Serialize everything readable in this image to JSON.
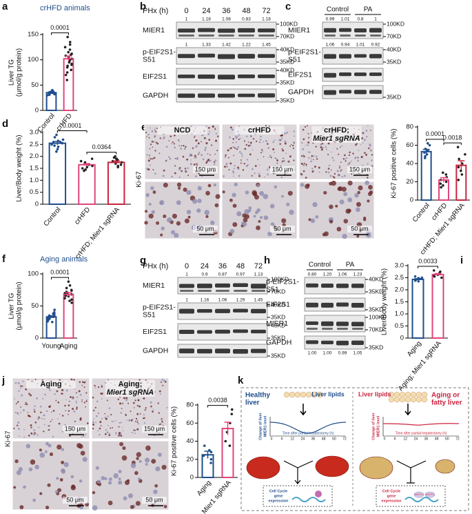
{
  "chart_data": [
    {
      "panel": "a",
      "type": "bar",
      "title": "crHFD animals",
      "ylabel": [
        "Liver TG",
        "(μmol/g protein)"
      ],
      "categories": [
        "Control",
        "crHFD"
      ],
      "values": [
        35,
        102
      ],
      "errors": [
        1.5,
        5.5
      ],
      "colors": [
        "#1f4e8c",
        "#e0457b"
      ],
      "points": [
        [
          30,
          32,
          33,
          34,
          35,
          35,
          36,
          36,
          37,
          38,
          38,
          40,
          34,
          31
        ],
        [
          145,
          135,
          130,
          125,
          120,
          115,
          112,
          110,
          108,
          105,
          102,
          100,
          98,
          95,
          92,
          90,
          88,
          85,
          80,
          75,
          70,
          60
        ]
      ],
      "ylim": [
        0,
        150
      ],
      "yticks": [
        0,
        50,
        100,
        150
      ],
      "comparisons": [
        {
          "label": "0.0001",
          "groups": [
            "Control",
            "crHFD"
          ]
        }
      ]
    },
    {
      "panel": "d",
      "type": "bar",
      "ylabel": [
        "Liver/Body weight (%)"
      ],
      "categories": [
        "Control",
        "crHFD",
        "crHFD; Mier1 sgRNA"
      ],
      "values": [
        2.55,
        1.65,
        1.75
      ],
      "errors": [
        0.07,
        0.05,
        0.06
      ],
      "colors": [
        "#1f4e8c",
        "#e0457b",
        "#c9243f"
      ],
      "points": [
        [
          2.9,
          2.8,
          2.7,
          2.65,
          2.6,
          2.55,
          2.5,
          2.45,
          2.4,
          2.3,
          2.2,
          2.6
        ],
        [
          1.9,
          1.8,
          1.75,
          1.7,
          1.65,
          1.6,
          1.55,
          1.5,
          1.45,
          1.4,
          1.7
        ],
        [
          2.0,
          1.95,
          1.9,
          1.85,
          1.8,
          1.75,
          1.7,
          1.65,
          1.6,
          1.55,
          1.8,
          1.9
        ]
      ],
      "ylim": [
        0,
        3
      ],
      "yticks": [
        0,
        0.5,
        {
          "value": 1,
          "label": "1.0"
        },
        1.5,
        {
          "value": 2,
          "label": "2.0"
        },
        2.5,
        {
          "value": 3,
          "label": "3.0"
        }
      ],
      "comparisons": [
        {
          "label": "0.0001",
          "groups": [
            "Control",
            "crHFD"
          ]
        },
        {
          "label": "0.0364",
          "groups": [
            "crHFD",
            "crHFD; Mier1 sgRNA"
          ]
        }
      ]
    },
    {
      "panel": "e",
      "type": "bar",
      "ylabel": [
        "Ki-67 positive cells (%)"
      ],
      "categories": [
        "Control",
        "crHFD",
        "crHFD; Mier1 sgRNA"
      ],
      "values": [
        53,
        22,
        38
      ],
      "errors": [
        2.5,
        2.5,
        5
      ],
      "colors": [
        "#1f4e8c",
        "#e0457b",
        "#c9243f"
      ],
      "points": [
        [
          62,
          60,
          56,
          54,
          52,
          50,
          48,
          46
        ],
        [
          30,
          28,
          25,
          22,
          20,
          18,
          16,
          14
        ],
        [
          58,
          50,
          45,
          40,
          36,
          32,
          28,
          22
        ]
      ],
      "ylim": [
        0,
        80
      ],
      "yticks": [
        0,
        20,
        40,
        60,
        80
      ],
      "comparisons": [
        {
          "label": "0.0001",
          "groups": [
            "Control",
            "crHFD"
          ]
        },
        {
          "label": "0.0018",
          "groups": [
            "crHFD",
            "crHFD; Mier1 sgRNA"
          ]
        }
      ]
    },
    {
      "panel": "f",
      "type": "bar",
      "title": "Aging animals",
      "ylabel": [
        "Liver TG",
        "(μmol/g protein)"
      ],
      "categories": [
        "Young",
        "Aging"
      ],
      "values": [
        33,
        68
      ],
      "errors": [
        1.8,
        3
      ],
      "colors": [
        "#1f4e8c",
        "#e0457b"
      ],
      "points": [
        [
          44,
          40,
          38,
          36,
          34,
          33,
          32,
          31,
          30,
          28,
          26,
          25,
          35,
          38
        ],
        [
          88,
          82,
          78,
          75,
          72,
          70,
          68,
          66,
          65,
          62,
          60,
          58,
          55,
          70,
          74
        ]
      ],
      "ylim": [
        0,
        100
      ],
      "yticks": [
        0,
        50,
        100
      ],
      "comparisons": [
        {
          "label": "0.0001",
          "groups": [
            "Young",
            "Aging"
          ]
        }
      ]
    },
    {
      "panel": "i",
      "type": "bar",
      "ylabel": [
        "Liver/Body weight (%)"
      ],
      "categories": [
        "Aging",
        "Aging; Mier1 sgRNA"
      ],
      "values": [
        2.43,
        2.63
      ],
      "errors": [
        0.03,
        0.04
      ],
      "colors": [
        "#1f4e8c",
        "#e0457b"
      ],
      "points": [
        [
          2.55,
          2.5,
          2.48,
          2.45,
          2.42,
          2.4,
          2.38,
          2.35
        ],
        [
          2.8,
          2.75,
          2.7,
          2.65,
          2.62,
          2.6,
          2.55,
          2.5
        ]
      ],
      "ylim": [
        0,
        3
      ],
      "yticks": [
        0,
        0.5,
        {
          "value": 1,
          "label": "1.0"
        },
        1.5,
        {
          "value": 2,
          "label": "2.0"
        },
        2.5,
        {
          "value": 3,
          "label": "3.0"
        }
      ],
      "comparisons": [
        {
          "label": "0.0033",
          "groups": [
            "Aging",
            "Aging; Mier1 sgRNA"
          ]
        }
      ]
    },
    {
      "panel": "j",
      "type": "bar",
      "ylabel": [
        "Ki-67 positive cells (%)"
      ],
      "categories": [
        "Aging",
        "Aging; Mier1 sgRNA"
      ],
      "values": [
        25,
        54
      ],
      "errors": [
        4,
        7
      ],
      "colors": [
        "#1f4e8c",
        "#e0457b"
      ],
      "points": [
        [
          35,
          30,
          28,
          24,
          20,
          16
        ],
        [
          75,
          70,
          60,
          50,
          40,
          35
        ]
      ],
      "ylim": [
        0,
        80
      ],
      "yticks": [
        0,
        20,
        40,
        60,
        80
      ],
      "comparisons": [
        {
          "label": "0.0038",
          "groups": [
            "Aging",
            "Aging; Mier1 sgRNA"
          ]
        }
      ]
    }
  ],
  "blots": [
    {
      "panel": "b",
      "header": "PHx (h)",
      "lanes": [
        "0",
        "24",
        "36",
        "48",
        "72"
      ],
      "rows": [
        {
          "name": [
            "MIER1"
          ],
          "quant": [
            "1",
            "1.18",
            "1.08",
            "0.83",
            "1.18"
          ],
          "markers": [
            "100KD",
            "70KD"
          ]
        },
        {
          "name": [
            "p-EIF2S1-",
            "S51"
          ],
          "quant": [
            "1",
            "1.33",
            "1.42",
            "1.22",
            "1.45"
          ],
          "markers": [
            "40KD",
            "35KD"
          ]
        },
        {
          "name": [
            "EIF2S1"
          ],
          "markers": [
            "40KD",
            "35KD"
          ]
        },
        {
          "name": [
            "GAPDH"
          ],
          "markers": [
            "35KD"
          ]
        }
      ]
    },
    {
      "panel": "c",
      "groups": [
        "Control",
        "PA"
      ],
      "rows": [
        {
          "name": [
            "MIER1"
          ],
          "quant": [
            "0.99",
            "1.01",
            "0.8",
            "1"
          ],
          "markers": [
            "100KD",
            "70KD"
          ]
        },
        {
          "name": [
            "p-EIF2S1-",
            "S51"
          ],
          "quant": [
            "1.06",
            "0.94",
            "1.01",
            "0.92"
          ],
          "markers": [
            "40KD",
            "35KD"
          ]
        },
        {
          "name": [
            "EIF2S1"
          ],
          "markers": []
        },
        {
          "name": [
            "GAPDH"
          ],
          "markers": [
            "35KD"
          ]
        }
      ]
    },
    {
      "panel": "g",
      "header": "PHx (h)",
      "lanes": [
        "0",
        "24",
        "36",
        "48",
        "72"
      ],
      "rows": [
        {
          "name": [
            "MIER1"
          ],
          "quant": [
            "1",
            "0.9",
            "0.87",
            "0.97",
            "1.13"
          ],
          "markers": [
            "100KD",
            "70KD"
          ]
        },
        {
          "name": [
            "p-EIF2S1-",
            "S51"
          ],
          "quant": [
            "1",
            "1.16",
            "1.06",
            "1.29",
            "1.45"
          ],
          "markers": [
            "40KD",
            "35KD"
          ]
        },
        {
          "name": [
            "EIF2S1"
          ],
          "markers": [
            "40KD",
            "35KD"
          ]
        },
        {
          "name": [
            "GAPDH"
          ],
          "markers": [
            "35KD"
          ]
        }
      ]
    },
    {
      "panel": "h",
      "groups": [
        "Control",
        "PA"
      ],
      "rows": [
        {
          "name": [
            "p-EIF2S1-",
            "S51"
          ],
          "quant": [
            "0.80",
            "1.20",
            "1.06",
            "1.23"
          ],
          "markers": [
            "40KD",
            "35KD"
          ]
        },
        {
          "name": [
            "EIF2S1"
          ],
          "markers": [
            "35KD"
          ]
        },
        {
          "name": [
            "MIER1"
          ],
          "markers": [
            "100KD",
            "70KD"
          ]
        },
        {
          "name": [
            "GAPDH"
          ],
          "markers": [
            "35KD"
          ]
        }
      ],
      "footer_quant": [
        "1.00",
        "1.00",
        "0.99",
        "1.05"
      ]
    }
  ],
  "micrographs": [
    {
      "panel": "e",
      "stain": "Ki-67",
      "columns": [
        {
          "title": [
            "NCD"
          ],
          "scales": [
            "150 μm",
            "50 μm"
          ]
        },
        {
          "title": [
            "crHFD"
          ],
          "scales": [
            "150 μm",
            "50 μm"
          ]
        },
        {
          "title": [
            "crHFD;",
            "Mier1 sgRNA"
          ],
          "scales": [
            "150 μm",
            "50 μm"
          ]
        }
      ]
    },
    {
      "panel": "j",
      "stain": "Ki-67",
      "columns": [
        {
          "title": [
            "Aging"
          ],
          "scales": [
            "150 μm",
            "50 μm"
          ]
        },
        {
          "title": [
            "Aging;",
            "Mier1 sgRNA"
          ],
          "scales": [
            "150 μm",
            "50 μm"
          ]
        }
      ]
    }
  ],
  "diagram": {
    "panel": "k",
    "left": {
      "title": [
        "Healthy",
        "liver"
      ],
      "lipids": "Liver lipids",
      "ylabel": [
        "Change of liver",
        "MIER1 level"
      ],
      "xlabel": "Time after  partial  hepatectomy (h)",
      "xticks": [
        "0",
        "6",
        "12",
        "24",
        "36",
        "48",
        "60",
        "72"
      ],
      "box": [
        "Cell Cycle",
        "gene",
        "expression"
      ]
    },
    "right": {
      "title": [
        "Aging or",
        "fatty liver"
      ],
      "lipids": "Liver lipids",
      "ylabel": [
        "Change of liver",
        "MIER1 level"
      ],
      "xlabel": "Time after  partial  hepatectomy (h)",
      "xticks": [
        "0",
        "6",
        "12",
        "24",
        "36",
        "48",
        "60",
        "72"
      ],
      "box": [
        "Cell Cycle",
        "gene",
        "expression"
      ],
      "proteins": [
        "MIER1",
        "MIER1"
      ]
    }
  }
}
